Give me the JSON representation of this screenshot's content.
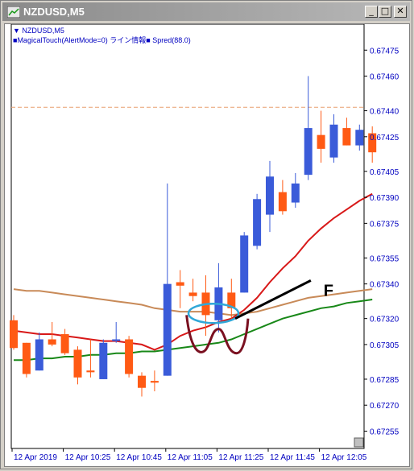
{
  "window": {
    "title": "NZDUSD,M5",
    "minimize_label": "_",
    "maximize_label": "□",
    "close_label": "✕"
  },
  "legend": {
    "symbol_line": "NZDUSD,M5",
    "indicator_line": "MagicalTouch(AlertMode=0) ライン情報",
    "spread_line": "Spred(88.0)"
  },
  "annotation": {
    "label": "F"
  },
  "colors": {
    "background": "#ffffff",
    "bull_candle": "#3a5bd9",
    "bear_candle": "#ff5a14",
    "dashed_level": "#e8a070",
    "ma_red": "#d81818",
    "ma_tan": "#c88a58",
    "ma_green": "#188818",
    "circle": "#30a8d8",
    "curve": "#7a1020",
    "price_axis": "#0000c0"
  },
  "chart_data": {
    "type": "candlestick",
    "title": "NZDUSD,M5",
    "y_ticks": [
      "0.67475",
      "0.67460",
      "0.67440",
      "0.67425",
      "0.67405",
      "0.67390",
      "0.67375",
      "0.67355",
      "0.67340",
      "0.67320",
      "0.67305",
      "0.67285",
      "0.67270",
      "0.67255"
    ],
    "x_ticks": [
      "12 Apr 2019",
      "12 Apr 10:25",
      "12 Apr 10:45",
      "12 Apr 11:05",
      "12 Apr 11:25",
      "12 Apr 11:45",
      "12 Apr 12:05"
    ],
    "ylim": [
      0.67245,
      0.6749
    ],
    "dashed_level": 0.67442,
    "candles": [
      {
        "o": 0.67319,
        "h": 0.67322,
        "l": 0.67302,
        "c": 0.67303
      },
      {
        "o": 0.67306,
        "h": 0.67306,
        "l": 0.67286,
        "c": 0.67288
      },
      {
        "o": 0.6729,
        "h": 0.67312,
        "l": 0.6729,
        "c": 0.67308
      },
      {
        "o": 0.67308,
        "h": 0.67318,
        "l": 0.67304,
        "c": 0.67305
      },
      {
        "o": 0.67311,
        "h": 0.67314,
        "l": 0.67299,
        "c": 0.673
      },
      {
        "o": 0.67302,
        "h": 0.67304,
        "l": 0.67282,
        "c": 0.67286
      },
      {
        "o": 0.6729,
        "h": 0.67308,
        "l": 0.67286,
        "c": 0.67289
      },
      {
        "o": 0.67285,
        "h": 0.67308,
        "l": 0.67285,
        "c": 0.67306
      },
      {
        "o": 0.67307,
        "h": 0.67318,
        "l": 0.67306,
        "c": 0.67308
      },
      {
        "o": 0.67308,
        "h": 0.6731,
        "l": 0.67286,
        "c": 0.67288
      },
      {
        "o": 0.67287,
        "h": 0.67289,
        "l": 0.67275,
        "c": 0.6728
      },
      {
        "o": 0.67284,
        "h": 0.6729,
        "l": 0.67278,
        "c": 0.67283
      },
      {
        "o": 0.67287,
        "h": 0.67398,
        "l": 0.67287,
        "c": 0.6734
      },
      {
        "o": 0.67341,
        "h": 0.67348,
        "l": 0.67326,
        "c": 0.67339
      },
      {
        "o": 0.67335,
        "h": 0.67343,
        "l": 0.6733,
        "c": 0.67333
      },
      {
        "o": 0.67335,
        "h": 0.67345,
        "l": 0.6731,
        "c": 0.67322
      },
      {
        "o": 0.67319,
        "h": 0.67352,
        "l": 0.67312,
        "c": 0.67338
      },
      {
        "o": 0.67335,
        "h": 0.67343,
        "l": 0.6732,
        "c": 0.67326
      },
      {
        "o": 0.67335,
        "h": 0.6737,
        "l": 0.67335,
        "c": 0.67368
      },
      {
        "o": 0.67362,
        "h": 0.67392,
        "l": 0.6736,
        "c": 0.67389
      },
      {
        "o": 0.6738,
        "h": 0.67411,
        "l": 0.6737,
        "c": 0.67402
      },
      {
        "o": 0.67393,
        "h": 0.674,
        "l": 0.6738,
        "c": 0.67382
      },
      {
        "o": 0.67387,
        "h": 0.67404,
        "l": 0.67384,
        "c": 0.67398
      },
      {
        "o": 0.67403,
        "h": 0.6746,
        "l": 0.674,
        "c": 0.6743
      },
      {
        "o": 0.67426,
        "h": 0.6744,
        "l": 0.6741,
        "c": 0.67418
      },
      {
        "o": 0.67413,
        "h": 0.67438,
        "l": 0.6741,
        "c": 0.67432
      },
      {
        "o": 0.6743,
        "h": 0.67436,
        "l": 0.6742,
        "c": 0.6742
      },
      {
        "o": 0.6742,
        "h": 0.67432,
        "l": 0.67417,
        "c": 0.67429
      },
      {
        "o": 0.67427,
        "h": 0.67431,
        "l": 0.6741,
        "c": 0.67416
      }
    ],
    "ma_red": [
      0.67313,
      0.67312,
      0.67311,
      0.67311,
      0.6731,
      0.67309,
      0.67308,
      0.67307,
      0.67307,
      0.67306,
      0.67305,
      0.67302,
      0.67305,
      0.6731,
      0.67313,
      0.67315,
      0.67318,
      0.6732,
      0.67325,
      0.67332,
      0.67341,
      0.67349,
      0.67356,
      0.67365,
      0.67372,
      0.67378,
      0.67383,
      0.67388,
      0.67392
    ],
    "ma_tan": [
      0.67337,
      0.67336,
      0.67336,
      0.67335,
      0.67334,
      0.67333,
      0.67332,
      0.67331,
      0.6733,
      0.67329,
      0.67328,
      0.67326,
      0.67325,
      0.67324,
      0.67324,
      0.67324,
      0.67323,
      0.67322,
      0.67323,
      0.67324,
      0.67326,
      0.67328,
      0.6733,
      0.67332,
      0.67333,
      0.67334,
      0.67335,
      0.67336,
      0.67337
    ],
    "ma_green": [
      0.67296,
      0.67296,
      0.67297,
      0.67297,
      0.67298,
      0.67298,
      0.67299,
      0.67299,
      0.673,
      0.673,
      0.67301,
      0.67301,
      0.67302,
      0.67303,
      0.67304,
      0.67305,
      0.67306,
      0.67308,
      0.67311,
      0.67314,
      0.67317,
      0.6732,
      0.67322,
      0.67324,
      0.67326,
      0.67327,
      0.67329,
      0.6733,
      0.67331
    ]
  }
}
